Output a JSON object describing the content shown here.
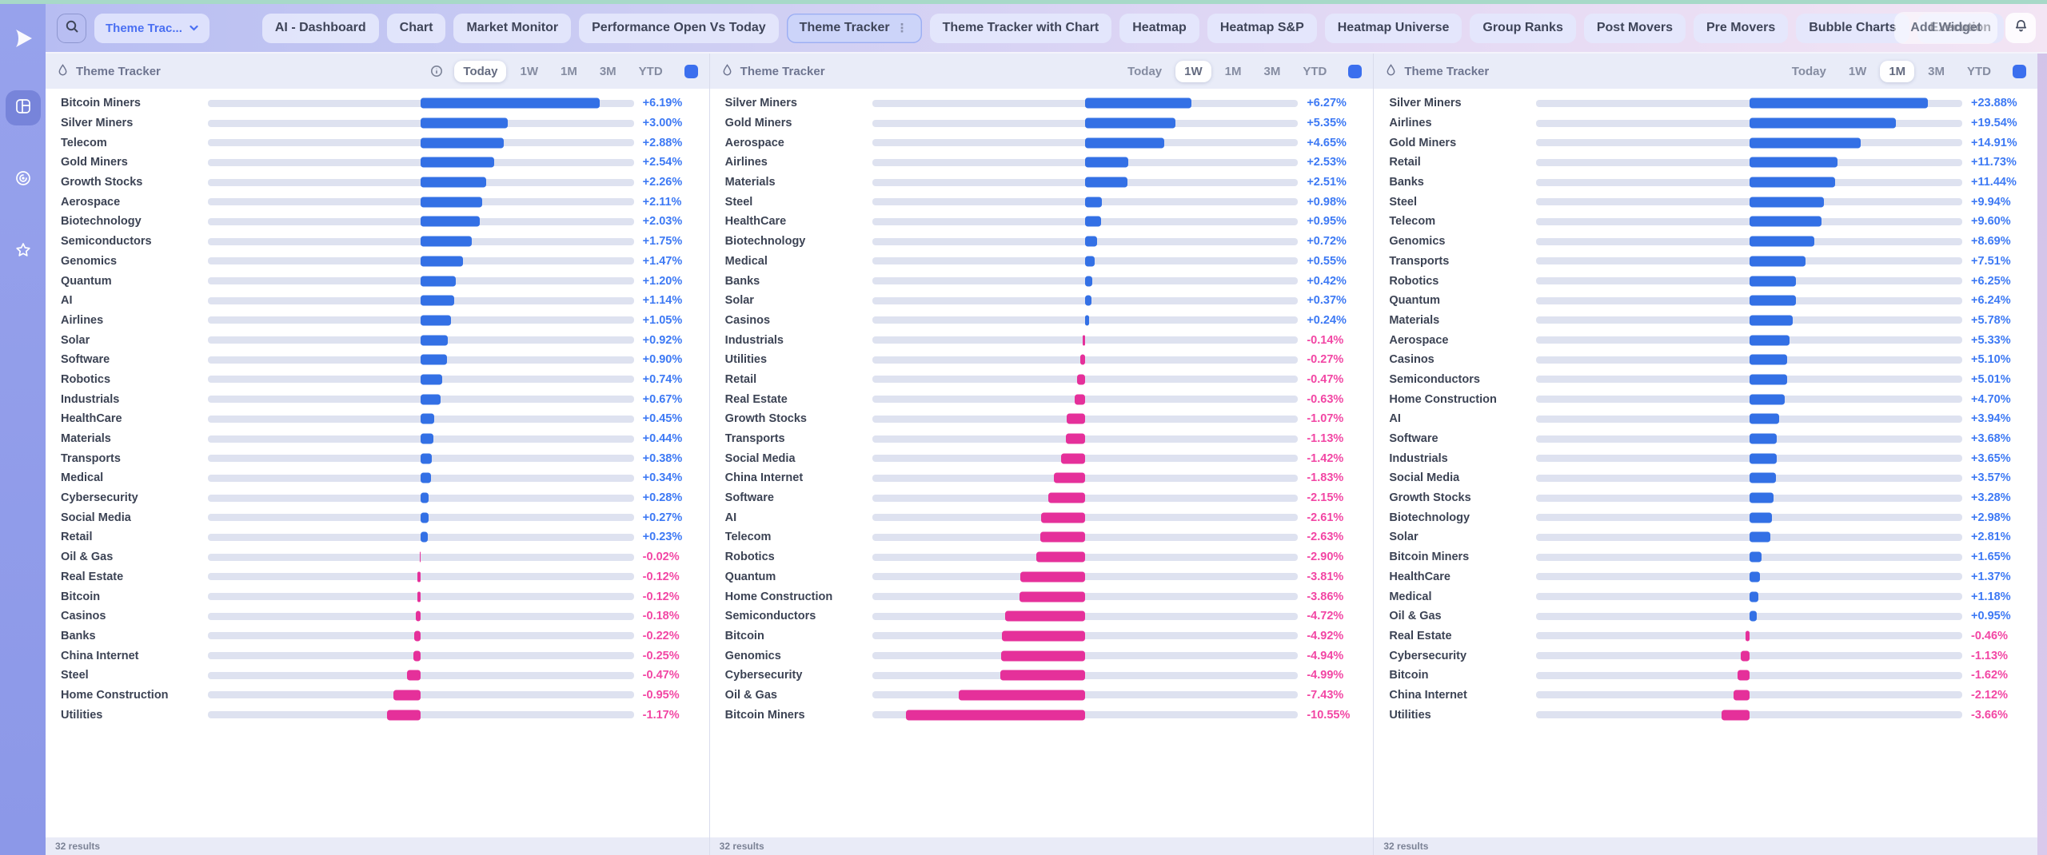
{
  "topbar": {
    "workspace_dropdown_label": "Theme Trac...",
    "add_widget_label": "Add Widget",
    "tabs": [
      {
        "label": "AI - Dashboard",
        "active": false
      },
      {
        "label": "Chart",
        "active": false
      },
      {
        "label": "Market Monitor",
        "active": false
      },
      {
        "label": "Performance Open Vs Today",
        "active": false
      },
      {
        "label": "Theme Tracker",
        "active": true
      },
      {
        "label": "Theme Tracker with Chart",
        "active": false
      },
      {
        "label": "Heatmap",
        "active": false
      },
      {
        "label": "Heatmap S&P",
        "active": false
      },
      {
        "label": "Heatmap Universe",
        "active": false
      },
      {
        "label": "Group Ranks",
        "active": false
      },
      {
        "label": "Post Movers",
        "active": false
      },
      {
        "label": "Pre Movers",
        "active": false
      },
      {
        "label": "Bubble Charts",
        "active": false
      },
      {
        "label": "Execution",
        "active": false
      }
    ]
  },
  "sidebar": {
    "icons": [
      {
        "name": "layout-grid-icon",
        "active": true
      },
      {
        "name": "target-icon",
        "active": false
      },
      {
        "name": "star-icon",
        "active": false
      }
    ]
  },
  "colors": {
    "positive_bar": "#3370e5",
    "negative_bar": "#e5309a",
    "positive_text": "#3d79f4",
    "negative_text": "#f246a4",
    "track": "#dee2f0",
    "accent_square": "#3b6fee",
    "top_strip": "#a7d9c8"
  },
  "chart_data": [
    {
      "type": "bar",
      "title": "Theme Tracker",
      "selected_range": "Today",
      "ranges": [
        "Today",
        "1W",
        "1M",
        "3M",
        "YTD"
      ],
      "show_info_icon": true,
      "results_label": "32 results",
      "categories": [
        "Bitcoin Miners",
        "Silver Miners",
        "Telecom",
        "Gold Miners",
        "Growth Stocks",
        "Aerospace",
        "Biotechnology",
        "Semiconductors",
        "Genomics",
        "Quantum",
        "AI",
        "Airlines",
        "Solar",
        "Software",
        "Robotics",
        "Industrials",
        "HealthCare",
        "Materials",
        "Transports",
        "Medical",
        "Cybersecurity",
        "Social Media",
        "Retail",
        "Oil & Gas",
        "Real Estate",
        "Bitcoin",
        "Casinos",
        "Banks",
        "China Internet",
        "Steel",
        "Home Construction",
        "Utilities"
      ],
      "values": [
        6.19,
        3.0,
        2.88,
        2.54,
        2.26,
        2.11,
        2.03,
        1.75,
        1.47,
        1.2,
        1.14,
        1.05,
        0.92,
        0.9,
        0.74,
        0.67,
        0.45,
        0.44,
        0.38,
        0.34,
        0.28,
        0.27,
        0.23,
        -0.02,
        -0.12,
        -0.12,
        -0.18,
        -0.22,
        -0.25,
        -0.47,
        -0.95,
        -1.17
      ],
      "value_labels": [
        "+6.19%",
        "+3.00%",
        "+2.88%",
        "+2.54%",
        "+2.26%",
        "+2.11%",
        "+2.03%",
        "+1.75%",
        "+1.47%",
        "+1.20%",
        "+1.14%",
        "+1.05%",
        "+0.92%",
        "+0.90%",
        "+0.74%",
        "+0.67%",
        "+0.45%",
        "+0.44%",
        "+0.38%",
        "+0.34%",
        "+0.28%",
        "+0.27%",
        "+0.23%",
        "-0.02%",
        "-0.12%",
        "-0.12%",
        "-0.18%",
        "-0.22%",
        "-0.25%",
        "-0.47%",
        "-0.95%",
        "-1.17%"
      ]
    },
    {
      "type": "bar",
      "title": "Theme Tracker",
      "selected_range": "1W",
      "ranges": [
        "Today",
        "1W",
        "1M",
        "3M",
        "YTD"
      ],
      "show_info_icon": false,
      "results_label": "32 results",
      "categories": [
        "Silver Miners",
        "Gold Miners",
        "Aerospace",
        "Airlines",
        "Materials",
        "Steel",
        "HealthCare",
        "Biotechnology",
        "Medical",
        "Banks",
        "Solar",
        "Casinos",
        "Industrials",
        "Utilities",
        "Retail",
        "Real Estate",
        "Growth Stocks",
        "Transports",
        "Social Media",
        "China Internet",
        "Software",
        "AI",
        "Telecom",
        "Robotics",
        "Quantum",
        "Home Construction",
        "Semiconductors",
        "Bitcoin",
        "Genomics",
        "Cybersecurity",
        "Oil & Gas",
        "Bitcoin Miners"
      ],
      "values": [
        6.27,
        5.35,
        4.65,
        2.53,
        2.51,
        0.98,
        0.95,
        0.72,
        0.55,
        0.42,
        0.37,
        0.24,
        -0.14,
        -0.27,
        -0.47,
        -0.63,
        -1.07,
        -1.13,
        -1.42,
        -1.83,
        -2.15,
        -2.61,
        -2.63,
        -2.9,
        -3.81,
        -3.86,
        -4.72,
        -4.92,
        -4.94,
        -4.99,
        -7.43,
        -10.55
      ],
      "value_labels": [
        "+6.27%",
        "+5.35%",
        "+4.65%",
        "+2.53%",
        "+2.51%",
        "+0.98%",
        "+0.95%",
        "+0.72%",
        "+0.55%",
        "+0.42%",
        "+0.37%",
        "+0.24%",
        "-0.14%",
        "-0.27%",
        "-0.47%",
        "-0.63%",
        "-1.07%",
        "-1.13%",
        "-1.42%",
        "-1.83%",
        "-2.15%",
        "-2.61%",
        "-2.63%",
        "-2.90%",
        "-3.81%",
        "-3.86%",
        "-4.72%",
        "-4.92%",
        "-4.94%",
        "-4.99%",
        "-7.43%",
        "-10.55%"
      ]
    },
    {
      "type": "bar",
      "title": "Theme Tracker",
      "selected_range": "1M",
      "ranges": [
        "Today",
        "1W",
        "1M",
        "3M",
        "YTD"
      ],
      "show_info_icon": false,
      "results_label": "32 results",
      "categories": [
        "Silver Miners",
        "Airlines",
        "Gold Miners",
        "Retail",
        "Banks",
        "Steel",
        "Telecom",
        "Genomics",
        "Transports",
        "Robotics",
        "Quantum",
        "Materials",
        "Aerospace",
        "Casinos",
        "Semiconductors",
        "Home Construction",
        "AI",
        "Software",
        "Industrials",
        "Social Media",
        "Growth Stocks",
        "Biotechnology",
        "Solar",
        "Bitcoin Miners",
        "HealthCare",
        "Medical",
        "Oil & Gas",
        "Real Estate",
        "Cybersecurity",
        "Bitcoin",
        "China Internet",
        "Utilities"
      ],
      "values": [
        23.88,
        19.54,
        14.91,
        11.73,
        11.44,
        9.94,
        9.6,
        8.69,
        7.51,
        6.25,
        6.24,
        5.78,
        5.33,
        5.1,
        5.01,
        4.7,
        3.94,
        3.68,
        3.65,
        3.57,
        3.28,
        2.98,
        2.81,
        1.65,
        1.37,
        1.18,
        0.95,
        -0.46,
        -1.13,
        -1.62,
        -2.12,
        -3.66
      ],
      "value_labels": [
        "+23.88%",
        "+19.54%",
        "+14.91%",
        "+11.73%",
        "+11.44%",
        "+9.94%",
        "+9.60%",
        "+8.69%",
        "+7.51%",
        "+6.25%",
        "+6.24%",
        "+5.78%",
        "+5.33%",
        "+5.10%",
        "+5.01%",
        "+4.70%",
        "+3.94%",
        "+3.68%",
        "+3.65%",
        "+3.57%",
        "+3.28%",
        "+2.98%",
        "+2.81%",
        "+1.65%",
        "+1.37%",
        "+1.18%",
        "+0.95%",
        "-0.46%",
        "-1.13%",
        "-1.62%",
        "-2.12%",
        "-3.66%"
      ]
    }
  ]
}
